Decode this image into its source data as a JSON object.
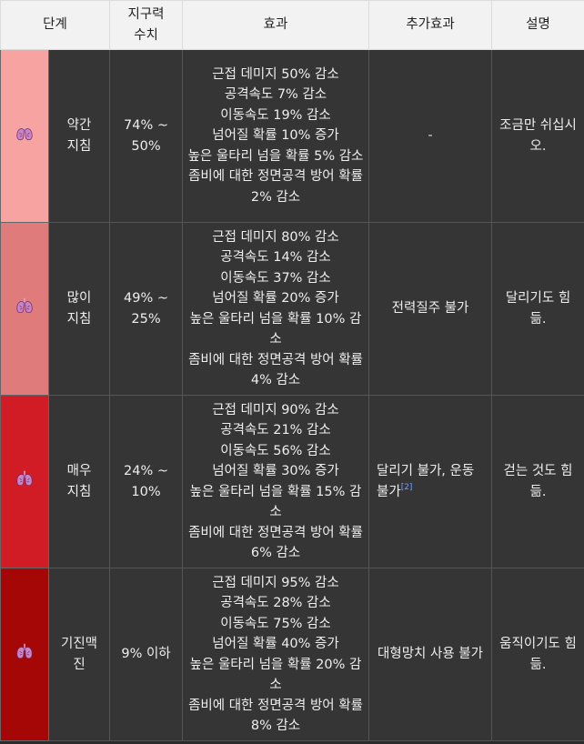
{
  "headers": {
    "stage": "단계",
    "stamina": "지구력\n수치",
    "effect": "효과",
    "extra": "추가효과",
    "desc": "설명"
  },
  "rows": [
    {
      "color": "#f6a3a1",
      "icon": "lungs-icon",
      "stage": "약간 지침",
      "range": "74% ~ 50%",
      "effects": "근접 데미지 50% 감소\n공격속도 7% 감소\n이동속도 19% 감소\n넘어질 확률 10% 증가\n높은 울타리 넘을 확률 5% 감소\n좀비에 대한 정면공격 방어 확률 2% 감소",
      "extra": "-",
      "footnote": "",
      "desc": "조금만 쉬십시오."
    },
    {
      "color": "#e07b7b",
      "icon": "lungs-icon",
      "stage": "많이 지침",
      "range": "49% ~ 25%",
      "effects": "근접 데미지 80% 감소\n공격속도 14% 감소\n이동속도 37% 감소\n넘어질 확률 20% 증가\n높은 울타리 넘을 확률 10% 감소\n좀비에 대한 정면공격 방어 확률 4% 감소",
      "extra": "전력질주 불가",
      "footnote": "",
      "desc": "달리기도 힘듦."
    },
    {
      "color": "#d11c26",
      "icon": "lungs-icon",
      "stage": "매우 지침",
      "range": "24% ~ 10%",
      "effects": "근접 데미지 90% 감소\n공격속도 21% 감소\n이동속도 56% 감소\n넘어질 확률 30% 증가\n높은 울타리 넘을 확률 15% 감소\n좀비에 대한 정면공격 방어 확률 6% 감소",
      "extra": "달리기 불가, 운동 불가",
      "footnote": "[2]",
      "desc": "걷는 것도 힘듦."
    },
    {
      "color": "#a50706",
      "icon": "lungs-icon",
      "stage": "기진맥진",
      "range": "9% 이하",
      "effects": "근접 데미지 95% 감소\n공격속도 28% 감소\n이동속도 75% 감소\n넘어질 확률 40% 증가\n높은 울타리 넘을 확률 20% 감소\n좀비에 대한 정면공격 방어 확률 8% 감소",
      "extra": "대형망치 사용 불가",
      "footnote": "",
      "desc": "움직이기도 힘듦."
    }
  ]
}
